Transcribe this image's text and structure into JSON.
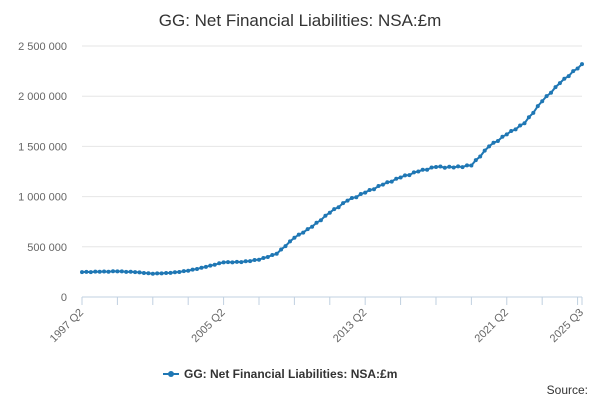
{
  "chart_data": {
    "type": "line",
    "title": "GG: Net Financial Liabilities: NSA:£m",
    "xlabel": "",
    "ylabel": "",
    "ylim": [
      0,
      2500000
    ],
    "y_ticks": [
      0,
      500000,
      1000000,
      1500000,
      2000000,
      2500000
    ],
    "y_tick_labels": [
      "0",
      "500 000",
      "1 000 000",
      "1 500 000",
      "2 000 000",
      "2 500 000"
    ],
    "x_tick_labels": [
      "1997 Q2",
      "2005 Q2",
      "2013 Q2",
      "2021 Q2",
      "2025 Q3"
    ],
    "x_tick_positions": [
      "1997 Q2",
      "2005 Q2",
      "2013 Q2",
      "2021 Q2",
      "2025 Q3"
    ],
    "grid": "horizontal",
    "legend_position": "bottom",
    "color": "#1f77b4",
    "series": [
      {
        "name": "GG: Net Financial Liabilities: NSA:£m",
        "points": [
          [
            "1997 Q2",
            248000
          ],
          [
            "1998 Q2",
            252000
          ],
          [
            "1999 Q2",
            255000
          ],
          [
            "2000 Q2",
            248000
          ],
          [
            "2001 Q2",
            232000
          ],
          [
            "2002 Q2",
            240000
          ],
          [
            "2003 Q2",
            262000
          ],
          [
            "2004 Q2",
            300000
          ],
          [
            "2005 Q2",
            345000
          ],
          [
            "2006 Q2",
            348000
          ],
          [
            "2007 Q2",
            372000
          ],
          [
            "2008 Q2",
            430000
          ],
          [
            "2009 Q2",
            590000
          ],
          [
            "2010 Q2",
            700000
          ],
          [
            "2011 Q2",
            840000
          ],
          [
            "2012 Q2",
            960000
          ],
          [
            "2013 Q2",
            1040000
          ],
          [
            "2014 Q2",
            1120000
          ],
          [
            "2015 Q2",
            1190000
          ],
          [
            "2016 Q2",
            1250000
          ],
          [
            "2017 Q2",
            1295000
          ],
          [
            "2018 Q2",
            1290000
          ],
          [
            "2019 Q2",
            1310000
          ],
          [
            "2020 Q2",
            1500000
          ],
          [
            "2021 Q2",
            1620000
          ],
          [
            "2022 Q2",
            1730000
          ],
          [
            "2023 Q2",
            1950000
          ],
          [
            "2024 Q2",
            2130000
          ],
          [
            "2025 Q3",
            2320000
          ]
        ]
      }
    ]
  },
  "legend": {
    "label": "GG: Net Financial Liabilities: NSA:£m"
  },
  "source": {
    "label": "Source:"
  }
}
